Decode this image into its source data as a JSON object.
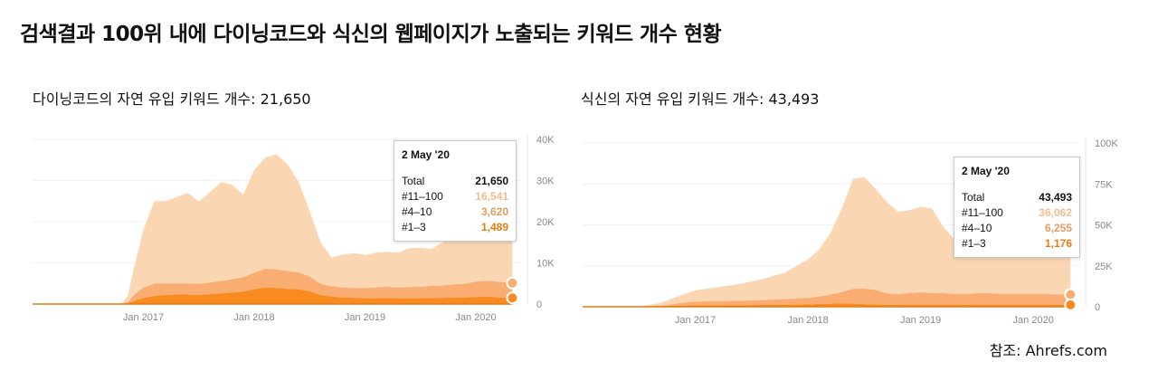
{
  "title": "검색결과 100위 내에 다이닝코드와 식신의 웹페이지가 노출되는 키워드 개수 현황",
  "source": "참조: Ahrefs.com",
  "colors": {
    "c1": "#f98a1f",
    "c2": "#f9ad72",
    "c3": "#fbd6b3",
    "ttc1": "#e67c12",
    "ttc2": "#e49a61",
    "ttc3": "#f4bc8e",
    "axis": "#e5e5e5",
    "tick": "#888888"
  },
  "left": {
    "subtitle": "다이닝코드의 자연 유입 키워드 개수: 21,650",
    "tooltip": {
      "date": "2 May '20",
      "rows": [
        {
          "label": "Total",
          "value": "21,650"
        },
        {
          "label": "#11–100",
          "value": "16,541"
        },
        {
          "label": "#4–10",
          "value": "3,620"
        },
        {
          "label": "#1–3",
          "value": "1,489"
        }
      ]
    }
  },
  "right": {
    "subtitle": "식신의 자연 유입 키워드 개수: 43,493",
    "tooltip": {
      "date": "2 May '20",
      "rows": [
        {
          "label": "Total",
          "value": "43,493"
        },
        {
          "label": "#11–100",
          "value": "36,062"
        },
        {
          "label": "#4–10",
          "value": "6,255"
        },
        {
          "label": "#1–3",
          "value": "1,176"
        }
      ]
    }
  },
  "chart_data": [
    {
      "type": "area",
      "title": "다이닝코드의 자연 유입 키워드 개수: 21,650",
      "xlim": [
        2016.0,
        2020.4
      ],
      "ylim": [
        0,
        40000
      ],
      "yticks": [
        0,
        10000,
        20000,
        30000,
        40000
      ],
      "ytick_labels": [
        "0",
        "10K",
        "20K",
        "30K",
        "40K"
      ],
      "xticks": [
        2017,
        2018,
        2019,
        2020
      ],
      "xtick_labels": [
        "Jan 2017",
        "Jan 2018",
        "Jan 2019",
        "Jan 2020"
      ],
      "x": [
        2016.0,
        2016.5,
        2016.8,
        2016.86,
        2016.92,
        2017.0,
        2017.1,
        2017.2,
        2017.3,
        2017.4,
        2017.5,
        2017.6,
        2017.7,
        2017.8,
        2017.9,
        2018.0,
        2018.1,
        2018.2,
        2018.3,
        2018.4,
        2018.5,
        2018.6,
        2018.7,
        2018.8,
        2018.9,
        2019.0,
        2019.1,
        2019.2,
        2019.3,
        2019.4,
        2019.5,
        2019.6,
        2019.7,
        2019.8,
        2019.9,
        2020.0,
        2020.1,
        2020.2,
        2020.3,
        2020.33
      ],
      "series": [
        {
          "name": "#1–3",
          "values": [
            0,
            0,
            0,
            200,
            800,
            1500,
            2000,
            2200,
            2300,
            2300,
            2200,
            2400,
            2600,
            2800,
            3000,
            3600,
            4000,
            3900,
            3700,
            3600,
            3100,
            2200,
            1800,
            1600,
            1500,
            1400,
            1400,
            1500,
            1400,
            1400,
            1400,
            1500,
            1500,
            1600,
            1600,
            1700,
            1800,
            1600,
            1500,
            1489
          ]
        },
        {
          "name": "#4–10",
          "values": [
            0,
            0,
            0,
            300,
            1500,
            2500,
            3000,
            2800,
            2700,
            2700,
            2700,
            2800,
            3000,
            3200,
            3500,
            4000,
            4600,
            4500,
            4300,
            4100,
            3600,
            2700,
            2500,
            2400,
            2400,
            2500,
            2600,
            2700,
            2600,
            2700,
            2800,
            2900,
            3000,
            3200,
            3300,
            3700,
            3900,
            3800,
            3700,
            3620
          ]
        },
        {
          "name": "#11–100",
          "values": [
            0,
            0,
            0,
            1500,
            7000,
            14000,
            20000,
            20000,
            21000,
            22000,
            20000,
            22000,
            24000,
            23000,
            20000,
            25000,
            27000,
            28000,
            26000,
            22000,
            16000,
            10000,
            7000,
            8000,
            8500,
            8000,
            8500,
            8500,
            8500,
            9500,
            9500,
            9000,
            10500,
            11500,
            10500,
            12500,
            14500,
            15500,
            16500,
            16541
          ]
        }
      ]
    },
    {
      "type": "area",
      "title": "식신의 자연 유입 키워드 개수: 43,493",
      "xlim": [
        2016.0,
        2020.4
      ],
      "ylim": [
        0,
        100000
      ],
      "yticks": [
        0,
        25000,
        50000,
        75000,
        100000
      ],
      "ytick_labels": [
        "0",
        "25K",
        "50K",
        "75K",
        "100K"
      ],
      "xticks": [
        2017,
        2018,
        2019,
        2020
      ],
      "xtick_labels": [
        "Jan 2017",
        "Jan 2018",
        "Jan 2019",
        "Jan 2020"
      ],
      "x": [
        2016.0,
        2016.5,
        2016.7,
        2016.85,
        2017.0,
        2017.2,
        2017.4,
        2017.6,
        2017.8,
        2018.0,
        2018.1,
        2018.2,
        2018.3,
        2018.4,
        2018.5,
        2018.6,
        2018.7,
        2018.8,
        2018.9,
        2019.0,
        2019.1,
        2019.2,
        2019.3,
        2019.4,
        2019.5,
        2019.6,
        2019.7,
        2019.8,
        2019.9,
        2020.0,
        2020.1,
        2020.2,
        2020.3,
        2020.33
      ],
      "series": [
        {
          "name": "#1–3",
          "values": [
            0,
            0,
            200,
            600,
            900,
            1000,
            1000,
            1100,
            1200,
            1400,
            1700,
            1900,
            2000,
            1900,
            1600,
            1300,
            1200,
            1200,
            1300,
            1300,
            1300,
            1300,
            1300,
            1200,
            1300,
            1300,
            1300,
            1300,
            1300,
            1300,
            1300,
            1200,
            1200,
            1176
          ]
        },
        {
          "name": "#4–10",
          "values": [
            0,
            0,
            500,
            1500,
            2200,
            2400,
            2600,
            3000,
            3500,
            4000,
            4500,
            5500,
            7000,
            9000,
            9500,
            9000,
            7000,
            6500,
            7000,
            7500,
            7000,
            7000,
            6500,
            6500,
            7000,
            7000,
            6500,
            6500,
            6500,
            6500,
            6500,
            6300,
            6300,
            6255
          ]
        },
        {
          "name": "#11–100",
          "values": [
            0,
            0,
            1800,
            4400,
            6900,
            8600,
            10400,
            12900,
            16300,
            23600,
            28800,
            37600,
            51000,
            67100,
            67900,
            61700,
            55800,
            50300,
            50700,
            52200,
            51700,
            40700,
            33200,
            37300,
            36700,
            35700,
            34200,
            34200,
            35200,
            35200,
            34200,
            36500,
            37500,
            36062
          ]
        }
      ]
    }
  ]
}
